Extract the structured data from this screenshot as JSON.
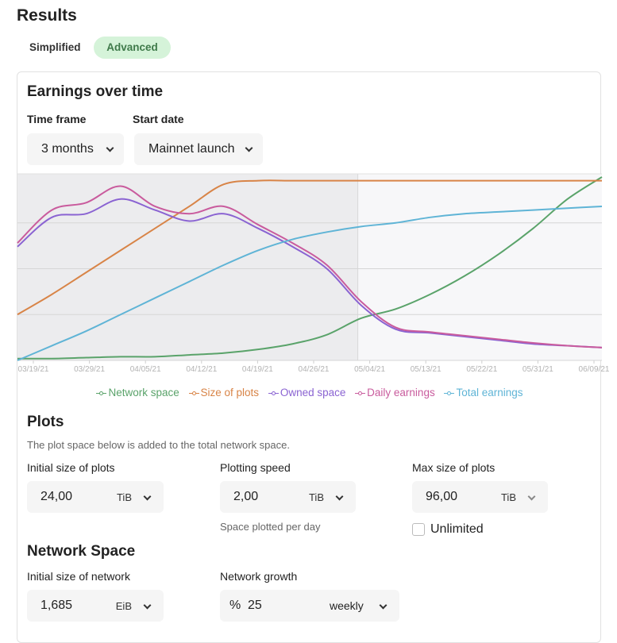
{
  "results_title": "Results",
  "view_toggle": {
    "simplified": "Simplified",
    "advanced": "Advanced"
  },
  "earnings": {
    "title": "Earnings over time",
    "timeframe_label": "Time frame",
    "timeframe_value": "3 months",
    "startdate_label": "Start date",
    "startdate_value": "Mainnet launch"
  },
  "legend": [
    "Network space",
    "Size of plots",
    "Owned space",
    "Daily earnings",
    "Total earnings"
  ],
  "colors": {
    "network_space": "#5aa36a",
    "size_of_plots": "#d88447",
    "owned_space": "#8a63d2",
    "daily_earnings": "#c95b9d",
    "total_earnings": "#5fb4d6",
    "accent": "#d5f3d9"
  },
  "chart_data": {
    "type": "line",
    "x_ticks": [
      "03/19/21",
      "03/29/21",
      "04/05/21",
      "04/12/21",
      "04/19/21",
      "04/26/21",
      "05/04/21",
      "05/13/21",
      "05/22/21",
      "05/31/21",
      "06/09/21"
    ],
    "history_end": "05/04/21",
    "grid": true,
    "legend_position": "bottom",
    "series": [
      {
        "name": "Network space",
        "values": [
          0.01,
          0.01,
          0.015,
          0.02,
          0.02,
          0.03,
          0.04,
          0.06,
          0.09,
          0.14,
          0.23,
          0.28,
          0.36,
          0.46,
          0.58,
          0.72,
          0.88,
          1.0
        ]
      },
      {
        "name": "Size of plots",
        "values": [
          0.25,
          0.36,
          0.48,
          0.6,
          0.72,
          0.84,
          0.96,
          0.98,
          0.98,
          0.98,
          0.98,
          0.98,
          0.98,
          0.98,
          0.98,
          0.98,
          0.98,
          0.98
        ]
      },
      {
        "name": "Owned space",
        "values": [
          0.62,
          0.78,
          0.8,
          0.88,
          0.82,
          0.76,
          0.8,
          0.72,
          0.62,
          0.5,
          0.3,
          0.17,
          0.15,
          0.13,
          0.11,
          0.09,
          0.08,
          0.07
        ]
      },
      {
        "name": "Daily earnings",
        "values": [
          0.64,
          0.82,
          0.86,
          0.95,
          0.84,
          0.8,
          0.84,
          0.74,
          0.64,
          0.52,
          0.32,
          0.18,
          0.155,
          0.135,
          0.115,
          0.095,
          0.08,
          0.07
        ]
      },
      {
        "name": "Total earnings",
        "values": [
          0.0,
          0.08,
          0.16,
          0.25,
          0.34,
          0.43,
          0.52,
          0.6,
          0.66,
          0.7,
          0.73,
          0.75,
          0.78,
          0.8,
          0.81,
          0.82,
          0.83,
          0.84
        ]
      }
    ]
  },
  "plots": {
    "title": "Plots",
    "note": "The plot space below is added to the total network space.",
    "initial_label": "Initial size of plots",
    "initial_value": "24,00",
    "initial_unit": "TiB",
    "speed_label": "Plotting speed",
    "speed_value": "2,00",
    "speed_unit": "TiB",
    "speed_note": "Space plotted per day",
    "max_label": "Max size of plots",
    "max_value": "96,00",
    "max_unit": "TiB",
    "unlimited_label": "Unlimited"
  },
  "network": {
    "title": "Network Space",
    "initial_label": "Initial size of network",
    "initial_value": "1,685",
    "initial_unit": "EiB",
    "growth_label": "Network growth",
    "growth_symbol": "%",
    "growth_value": "25",
    "growth_period": "weekly"
  }
}
